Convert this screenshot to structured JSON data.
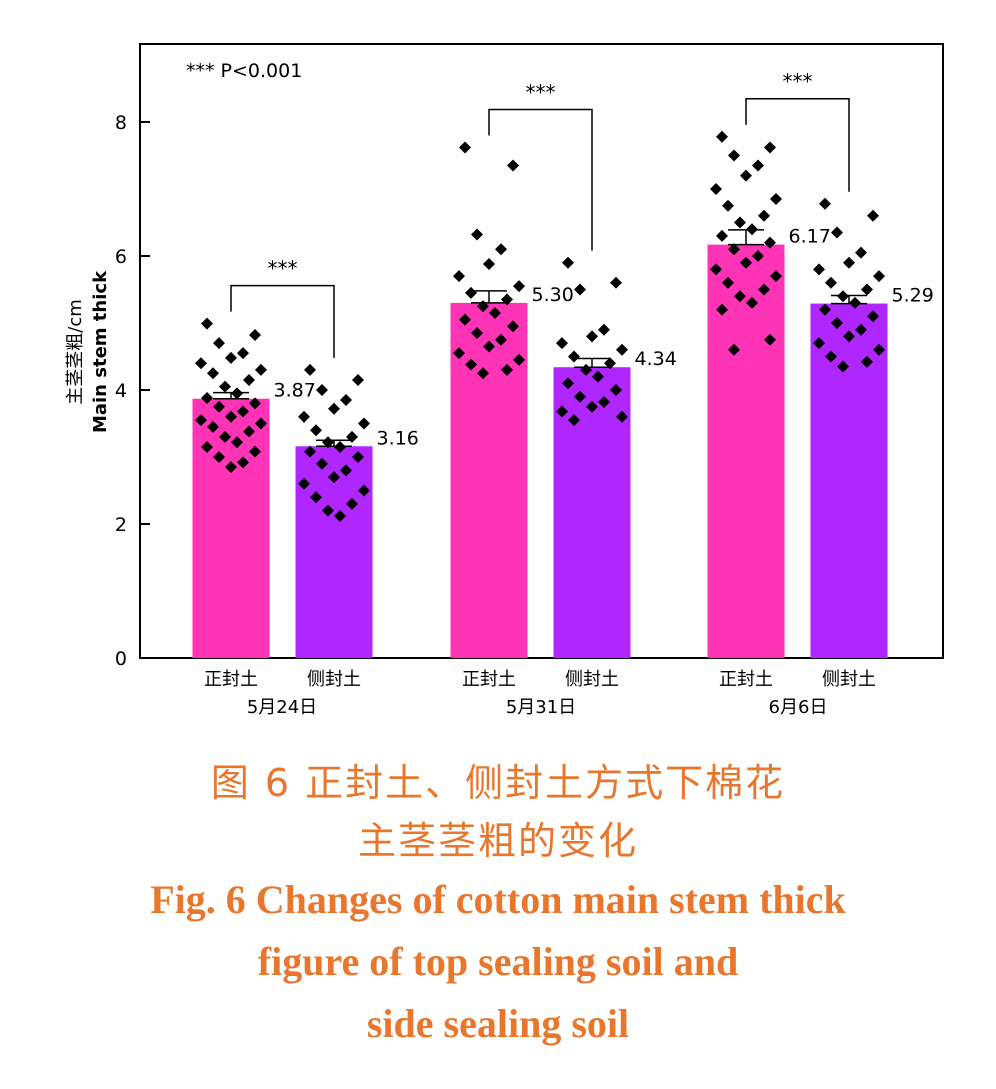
{
  "chart_data": {
    "type": "bar",
    "ylabel_cn": "主茎茎粗/cm",
    "ylabel_en": "Main stem thick",
    "ylim": [
      0,
      9.1
    ],
    "yticks": [
      0,
      2,
      4,
      6,
      8
    ],
    "significance_note": "*** P<0.001",
    "groups": [
      {
        "date": "5月24日",
        "significance": "***",
        "bars": [
          {
            "name": "正封土",
            "mean": 3.87,
            "label": "3.87",
            "color": "#ff33b6",
            "se": 0.09,
            "points": [
              4.99,
              4.82,
              4.7,
              4.55,
              4.48,
              4.4,
              4.3,
              4.25,
              4.15,
              4.05,
              3.95,
              3.88,
              3.8,
              3.75,
              3.68,
              3.6,
              3.55,
              3.5,
              3.45,
              3.38,
              3.3,
              3.22,
              3.15,
              3.08,
              3.0,
              2.92,
              2.85
            ]
          },
          {
            "name": "侧封土",
            "mean": 3.16,
            "label": "3.16",
            "color": "#b026ff",
            "se": 0.09,
            "points": [
              4.3,
              4.15,
              4.0,
              3.85,
              3.72,
              3.6,
              3.5,
              3.4,
              3.3,
              3.22,
              3.15,
              3.08,
              3.0,
              2.9,
              2.8,
              2.7,
              2.6,
              2.5,
              2.4,
              2.3,
              2.2,
              2.12
            ]
          }
        ]
      },
      {
        "date": "5月31日",
        "significance": "***",
        "bars": [
          {
            "name": "正封土",
            "mean": 5.3,
            "label": "5.30",
            "color": "#ff33b6",
            "se": 0.18,
            "points": [
              7.62,
              7.35,
              6.32,
              6.1,
              5.88,
              5.7,
              5.55,
              5.45,
              5.35,
              5.25,
              5.15,
              5.05,
              4.95,
              4.85,
              4.75,
              4.65,
              4.55,
              4.45,
              4.38,
              4.3,
              4.25
            ]
          },
          {
            "name": "侧封土",
            "mean": 4.34,
            "label": "4.34",
            "color": "#b026ff",
            "se": 0.13,
            "points": [
              5.9,
              5.6,
              5.5,
              4.9,
              4.8,
              4.7,
              4.6,
              4.5,
              4.4,
              4.3,
              4.2,
              4.1,
              4.0,
              3.9,
              3.82,
              3.75,
              3.68,
              3.6,
              3.55
            ]
          }
        ]
      },
      {
        "date": "6月6日",
        "significance": "***",
        "bars": [
          {
            "name": "正封土",
            "mean": 6.17,
            "label": "6.17",
            "color": "#ff33b6",
            "se": 0.22,
            "points": [
              7.78,
              7.62,
              7.5,
              7.35,
              7.2,
              7.0,
              6.85,
              6.75,
              6.6,
              6.5,
              6.4,
              6.3,
              6.2,
              6.1,
              6.0,
              5.9,
              5.8,
              5.7,
              5.6,
              5.5,
              5.4,
              5.3,
              5.2,
              4.75,
              4.6
            ]
          },
          {
            "name": "侧封土",
            "mean": 5.29,
            "label": "5.29",
            "color": "#b026ff",
            "se": 0.12,
            "points": [
              6.78,
              6.6,
              6.35,
              6.05,
              5.9,
              5.8,
              5.7,
              5.6,
              5.5,
              5.4,
              5.3,
              5.2,
              5.1,
              5.0,
              4.9,
              4.8,
              4.7,
              4.6,
              4.5,
              4.42,
              4.35
            ]
          }
        ]
      }
    ]
  },
  "caption": {
    "cn_line1": "图 6    正封土、侧封土方式下棉花",
    "cn_line2": "主茎茎粗的变化",
    "en_line1": "Fig. 6    Changes of cotton main stem thick",
    "en_line2": "figure of top sealing soil and",
    "en_line3": "side sealing soil"
  }
}
